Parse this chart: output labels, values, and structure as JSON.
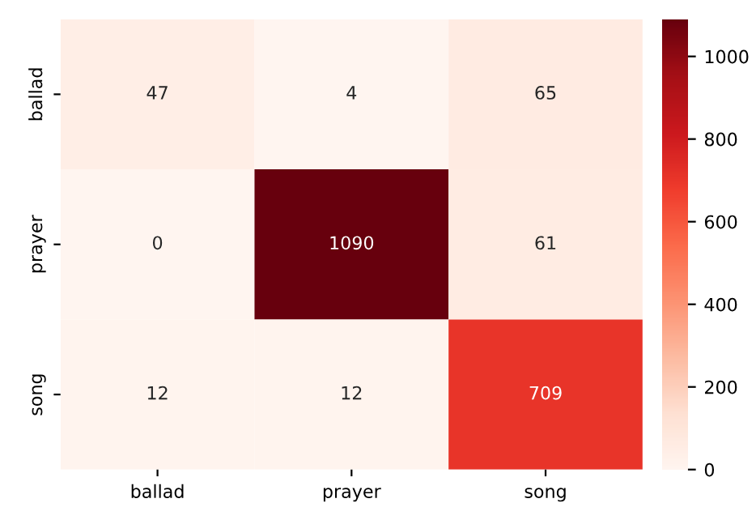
{
  "chart_data": {
    "type": "heatmap",
    "categories": [
      "ballad",
      "prayer",
      "song"
    ],
    "y_categories": [
      "ballad",
      "prayer",
      "song"
    ],
    "cells": [
      [
        47,
        4,
        65
      ],
      [
        0,
        1090,
        61
      ],
      [
        12,
        12,
        709
      ]
    ],
    "data_labels": true,
    "clim": [
      0,
      1090
    ],
    "cticks": [
      0,
      200,
      400,
      600,
      800,
      1000
    ]
  }
}
